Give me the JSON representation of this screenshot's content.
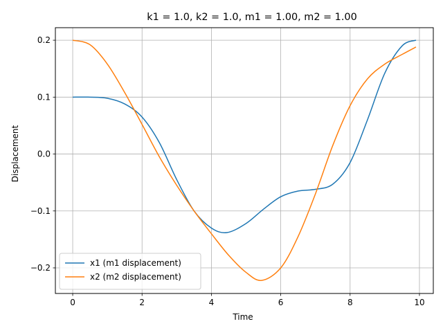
{
  "chart_data": {
    "type": "line",
    "title": "k1 = 1.0, k2 = 1.0, m1 = 1.00, m2 = 1.00",
    "xlabel": "Time",
    "ylabel": "Displacement",
    "xlim": [
      -0.5,
      10.4
    ],
    "ylim": [
      -0.245,
      0.222
    ],
    "xticks": [
      0,
      2,
      4,
      6,
      8,
      10
    ],
    "xtick_labels": [
      "0",
      "2",
      "4",
      "6",
      "8",
      "10"
    ],
    "yticks": [
      -0.2,
      -0.1,
      0.0,
      0.1,
      0.2
    ],
    "ytick_labels": [
      "−0.2",
      "−0.1",
      "0.0",
      "0.1",
      "0.2"
    ],
    "grid": true,
    "legend_position": "lower-left",
    "series": [
      {
        "name": "x1 (m1 displacement)",
        "color": "#1f77b4",
        "x": [
          0,
          0.5,
          1.0,
          1.5,
          2.0,
          2.5,
          3.0,
          3.5,
          4.0,
          4.45,
          5.0,
          5.5,
          6.0,
          6.5,
          7.0,
          7.5,
          8.0,
          8.5,
          9.0,
          9.5,
          9.9
        ],
        "y": [
          0.1,
          0.1,
          0.098,
          0.088,
          0.065,
          0.02,
          -0.045,
          -0.1,
          -0.13,
          -0.138,
          -0.122,
          -0.097,
          -0.075,
          -0.065,
          -0.062,
          -0.053,
          -0.015,
          0.06,
          0.142,
          0.19,
          0.2
        ]
      },
      {
        "name": "x2 (m2 displacement)",
        "color": "#ff7f0e",
        "x": [
          0,
          0.5,
          1.0,
          1.5,
          2.0,
          2.5,
          3.0,
          3.5,
          4.0,
          4.5,
          5.0,
          5.45,
          6.0,
          6.5,
          7.0,
          7.5,
          8.0,
          8.5,
          9.0,
          9.5,
          9.9
        ],
        "y": [
          0.2,
          0.192,
          0.158,
          0.108,
          0.052,
          -0.005,
          -0.055,
          -0.1,
          -0.14,
          -0.178,
          -0.208,
          -0.222,
          -0.2,
          -0.145,
          -0.07,
          0.015,
          0.085,
          0.132,
          0.158,
          0.175,
          0.188
        ]
      }
    ]
  }
}
